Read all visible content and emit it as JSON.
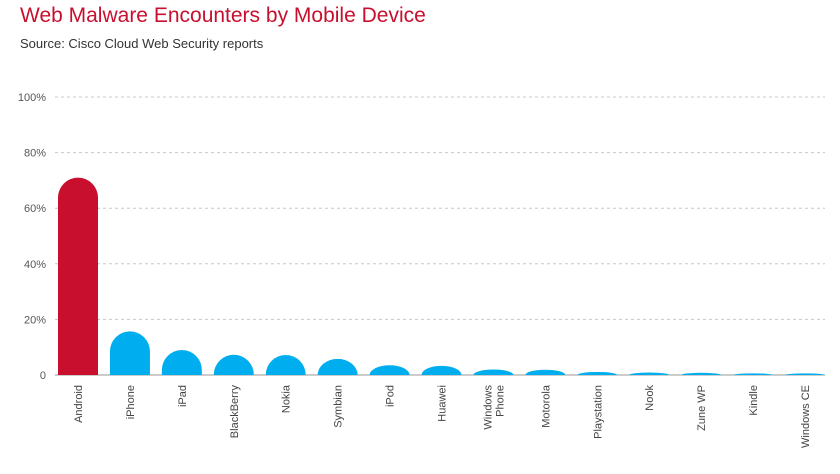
{
  "chart_data": {
    "type": "bar",
    "title": "Web Malware Encounters by Mobile Device",
    "subtitle": "Source: Cisco Cloud Web Security reports",
    "xlabel": "",
    "ylabel": "",
    "ylim": [
      0,
      100
    ],
    "yticks": [
      0,
      20,
      40,
      60,
      80,
      100
    ],
    "ytick_labels": [
      "0",
      "20%",
      "40%",
      "60%",
      "80%",
      "100%"
    ],
    "grid": true,
    "categories": [
      "Android",
      "iPhone",
      "iPad",
      "BlackBerry",
      "Nokia",
      "Symbian",
      "iPod",
      "Huawei",
      "Windows Phone",
      "Motorola",
      "Playstation",
      "Nook",
      "Zune WP",
      "Kindle",
      "Windows CE"
    ],
    "category_lines": [
      [
        "Android"
      ],
      [
        "iPhone"
      ],
      [
        "iPad"
      ],
      [
        "BlackBerry"
      ],
      [
        "Nokia"
      ],
      [
        "Symbian"
      ],
      [
        "iPod"
      ],
      [
        "Huawei"
      ],
      [
        "Windows",
        "Phone"
      ],
      [
        "Motorola"
      ],
      [
        "Playstation"
      ],
      [
        "Nook"
      ],
      [
        "Zune WP"
      ],
      [
        "Kindle"
      ],
      [
        "Windows CE"
      ]
    ],
    "values": [
      71.0,
      15.7,
      9.0,
      7.3,
      7.2,
      5.8,
      3.5,
      3.3,
      2.0,
      1.9,
      1.1,
      0.9,
      0.8,
      0.6,
      0.6
    ],
    "colors": {
      "highlight": "#c8102e",
      "bar": "#00aeef",
      "title": "#c8102e"
    }
  }
}
